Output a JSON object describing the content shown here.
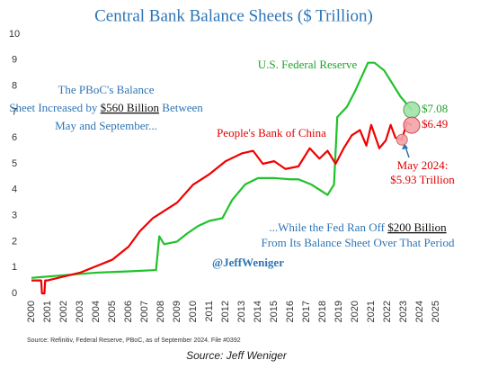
{
  "chart_data": {
    "type": "line",
    "title": "Central Bank Balance Sheets ($ Trillion)",
    "xlim": [
      2000,
      2025
    ],
    "xticks": [
      2000,
      2001,
      2002,
      2003,
      2004,
      2005,
      2006,
      2007,
      2008,
      2009,
      2010,
      2011,
      2012,
      2013,
      2014,
      2015,
      2016,
      2017,
      2018,
      2019,
      2020,
      2021,
      2022,
      2023,
      2024,
      2025
    ],
    "ylim": [
      0,
      10
    ],
    "yticks": [
      0,
      1,
      2,
      3,
      4,
      5,
      6,
      7,
      8,
      9,
      10
    ],
    "series": [
      {
        "color": "#1fc22b",
        "x": [
          2000,
          2002,
          2004,
          2006,
          2007.7,
          2007.9,
          2008.2,
          2009,
          2009.6,
          2010.3,
          2011,
          2011.8,
          2012.4,
          2013.2,
          2014,
          2015,
          2016,
          2016.5,
          2017.3,
          2018.3,
          2018.7,
          2018.9,
          2019.5,
          2020,
          2020.8,
          2021.2,
          2021.8,
          2022.3,
          2022.8,
          2023.5
        ],
        "values": [
          0.6,
          0.7,
          0.8,
          0.85,
          0.9,
          2.2,
          1.9,
          2.0,
          2.3,
          2.6,
          2.8,
          2.9,
          3.6,
          4.2,
          4.45,
          4.45,
          4.4,
          4.4,
          4.2,
          3.8,
          4.2,
          6.8,
          7.2,
          7.8,
          8.9,
          8.9,
          8.6,
          8.1,
          7.6,
          7.08
        ]
      },
      {
        "color": "#f00000",
        "x": [
          2000,
          2000.6,
          2000.65,
          2000.8,
          2000.85,
          2001,
          2003,
          2005,
          2006,
          2006.7,
          2007.5,
          2008,
          2009,
          2010,
          2011,
          2012,
          2013,
          2013.7,
          2014.3,
          2015,
          2015.7,
          2016.5,
          2017.2,
          2017.8,
          2018.3,
          2018.8,
          2019.3,
          2019.8,
          2020.3,
          2020.7,
          2021,
          2021.5,
          2021.9,
          2022.2,
          2022.5,
          2022.9,
          2023.2,
          2023.5
        ],
        "values": [
          0.5,
          0.5,
          0,
          0,
          0.5,
          0.5,
          0.8,
          1.3,
          1.8,
          2.4,
          2.9,
          3.1,
          3.5,
          4.2,
          4.6,
          5.1,
          5.4,
          5.5,
          5.0,
          5.1,
          4.8,
          4.9,
          5.6,
          5.2,
          5.5,
          5.0,
          5.6,
          6.1,
          6.3,
          5.7,
          6.5,
          5.6,
          5.9,
          6.5,
          6.0,
          5.93,
          6.6,
          6.49
        ]
      }
    ],
    "highlights": [
      {
        "x": 2023.5,
        "value": 7.08,
        "label": "$7.08",
        "color": "#9fe3a6",
        "stroke": "#5a9a60",
        "text_color": "#1fa52b"
      },
      {
        "x": 2023.5,
        "value": 6.49,
        "label": "$6.49",
        "color": "#f4a3a8",
        "stroke": "#c44",
        "text_color": "#e00000"
      },
      {
        "x": 2022.9,
        "value": 5.93,
        "color": "#f4a3a8",
        "stroke": "#c66"
      }
    ],
    "annotations": [
      {
        "color": "#1fa52b",
        "lines": [
          [
            {
              "text": "U.S. Federal Reserve"
            }
          ]
        ]
      },
      {
        "color": "#e00000",
        "lines": [
          [
            {
              "text": "People's Bank of China"
            }
          ]
        ]
      },
      {
        "color": "#2e75b6",
        "lines": [
          [
            {
              "text": "The PBoC's Balance"
            }
          ],
          [
            {
              "text": "Sheet Increased by "
            },
            {
              "text": "$560 Billion",
              "underline": true
            },
            {
              "text": " Between"
            }
          ],
          [
            {
              "text": "May and September..."
            }
          ]
        ]
      },
      {
        "color": "#2e75b6",
        "lines": [
          [
            {
              "text": "...While the Fed Ran Off "
            },
            {
              "text": "$200 Billion",
              "underline": true
            }
          ],
          [
            {
              "text": "From Its Balance Sheet Over That Period"
            }
          ]
        ]
      },
      {
        "color": "#e00000",
        "lines": [
          [
            {
              "text": "May 2024:"
            }
          ],
          [
            {
              "text": "$5.93 Trillion"
            }
          ]
        ]
      },
      {
        "color": "#2e75b6",
        "bold": true,
        "lines": [
          [
            {
              "text": "@JeffWeniger"
            }
          ]
        ]
      }
    ],
    "footnote": "Source: Refinitiv, Federal Reserve, PBoC, as of September 2024. File #0392",
    "caption": "Source: Jeff Weniger"
  }
}
